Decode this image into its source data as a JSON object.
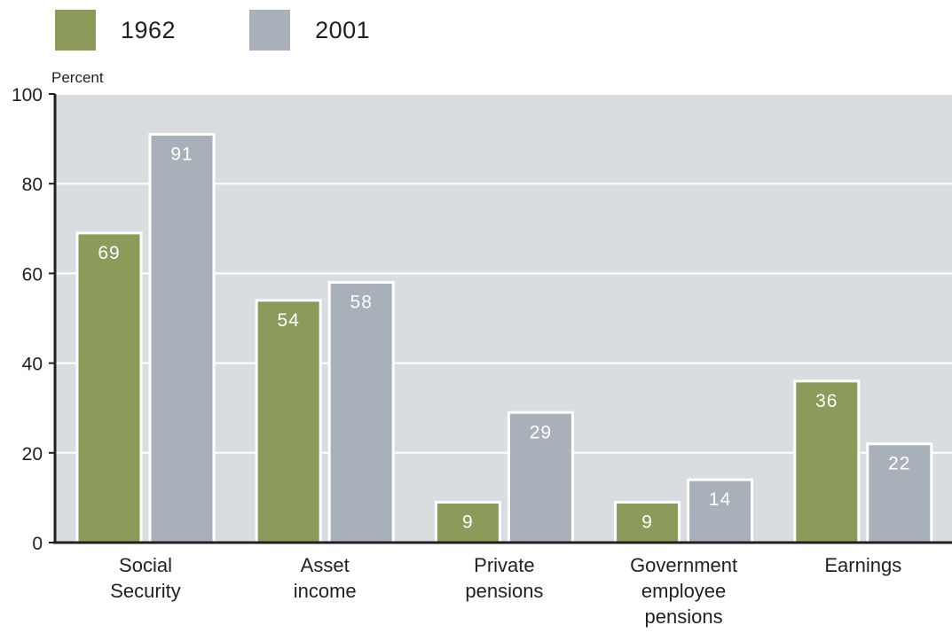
{
  "legend": [
    {
      "label": "1962",
      "color": "#8c9b5a"
    },
    {
      "label": "2001",
      "color": "#a8b0ba"
    }
  ],
  "chart_data": {
    "type": "bar",
    "ylabel": "Percent",
    "ylim": [
      0,
      100
    ],
    "yticks": [
      0,
      20,
      40,
      60,
      80,
      100
    ],
    "categories": [
      [
        "Social",
        "Security"
      ],
      [
        "Asset",
        "income"
      ],
      [
        "Private",
        "pensions"
      ],
      [
        "Government",
        "employee",
        "pensions"
      ],
      [
        "Earnings"
      ]
    ],
    "series": [
      {
        "name": "1962",
        "color": "#8c9b5a",
        "values": [
          69,
          54,
          9,
          9,
          36
        ]
      },
      {
        "name": "2001",
        "color": "#a8b0ba",
        "values": [
          91,
          58,
          29,
          14,
          22
        ]
      }
    ],
    "grid": true,
    "plot_background": "#d9dde0",
    "legend_position": "top-left"
  }
}
